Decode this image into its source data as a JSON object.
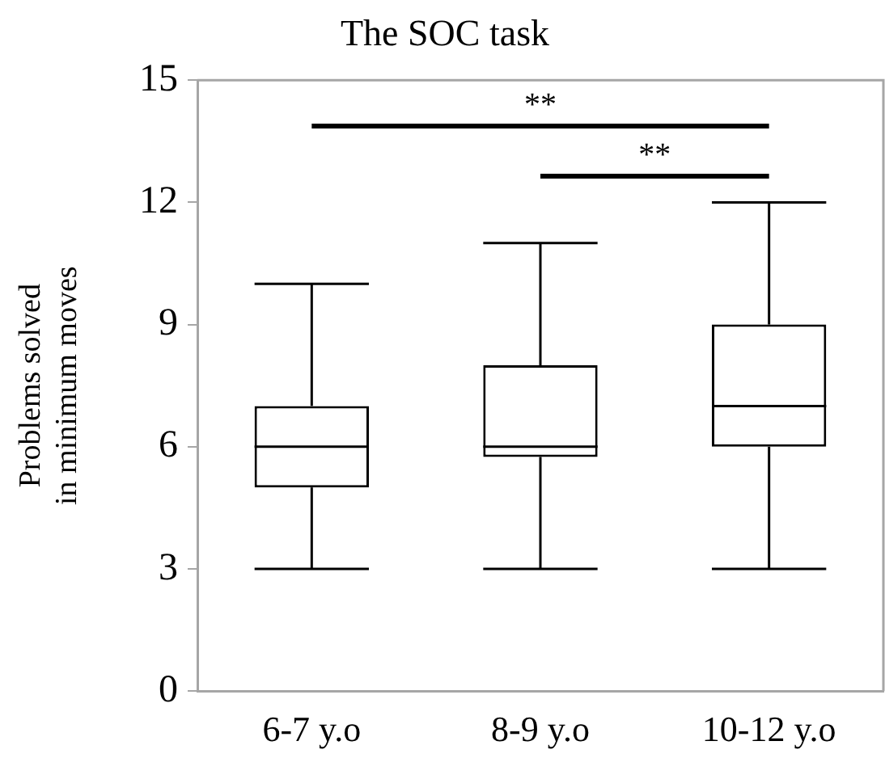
{
  "chart_data": {
    "type": "box",
    "title": "The SOC task",
    "ylabel": "Problems solved in minimum moves",
    "categories": [
      "6-7 y.o",
      "8-9 y.o",
      "10-12 y.o"
    ],
    "boxes": [
      {
        "low": 3,
        "q1": 5,
        "median": 6,
        "q3": 7,
        "high": 10
      },
      {
        "low": 3,
        "q1": 5.75,
        "median": 6,
        "q3": 8,
        "high": 11
      },
      {
        "low": 3,
        "q1": 6,
        "median": 7,
        "q3": 9,
        "high": 12
      }
    ],
    "ylim": [
      0,
      15
    ],
    "yticks": [
      0,
      3,
      6,
      9,
      12,
      15
    ],
    "grid": false,
    "legend": false,
    "annotations": [
      "**",
      "**"
    ]
  }
}
